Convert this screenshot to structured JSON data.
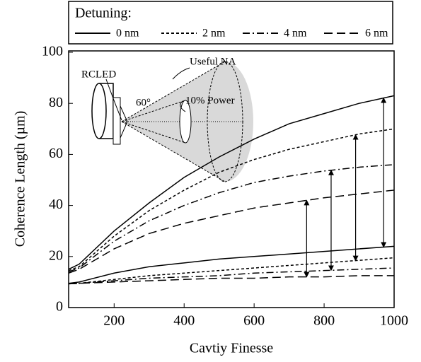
{
  "chart_data": {
    "type": "line",
    "legend_title": "Detuning:",
    "xlabel": "Cavtiy Finesse",
    "ylabel": "Coherence Length (µm)",
    "xlim": [
      70,
      1000
    ],
    "ylim": [
      0,
      100
    ],
    "xticks": [
      200,
      400,
      600,
      800,
      1000
    ],
    "yticks": [
      0,
      20,
      40,
      60,
      80,
      100
    ],
    "x": [
      70,
      100,
      200,
      300,
      400,
      500,
      600,
      700,
      800,
      900,
      1000
    ],
    "color": "#000000",
    "series": [
      {
        "name": "0 nm",
        "dash": "none",
        "arrow_x": 970,
        "upper": [
          15,
          17,
          30,
          41,
          51,
          59,
          66,
          72,
          76,
          80,
          83
        ],
        "lower": [
          9.5,
          10,
          13.5,
          16,
          17.5,
          19,
          20,
          21,
          22,
          23,
          24
        ]
      },
      {
        "name": "2 nm",
        "dash": "4,3",
        "arrow_x": 890,
        "upper": [
          14.5,
          16,
          28,
          38,
          46,
          53,
          58,
          62,
          65,
          68,
          70
        ],
        "lower": [
          9.3,
          9.5,
          11,
          12.5,
          13.5,
          14.5,
          15.5,
          16.5,
          17.5,
          18.5,
          19.5
        ]
      },
      {
        "name": "4 nm",
        "dash": "10,4,2,4",
        "arrow_x": 820,
        "upper": [
          14,
          15.5,
          26,
          34,
          40,
          45,
          49,
          51.5,
          53.5,
          55,
          56
        ],
        "lower": [
          9.3,
          9.5,
          10.5,
          11.5,
          12,
          12.5,
          13.5,
          14,
          14.5,
          15,
          15.5
        ]
      },
      {
        "name": "6 nm",
        "dash": "12,6",
        "arrow_x": 750,
        "upper": [
          13.5,
          15,
          23,
          29,
          33,
          36,
          39,
          41,
          43,
          44.5,
          46
        ],
        "lower": [
          9.3,
          9.5,
          10,
          10.5,
          11,
          11.5,
          11.5,
          12,
          12,
          12.5,
          12.5
        ]
      }
    ],
    "inset_labels": [
      "RCLED",
      "60°",
      "Useful NA",
      "10% Power"
    ]
  }
}
